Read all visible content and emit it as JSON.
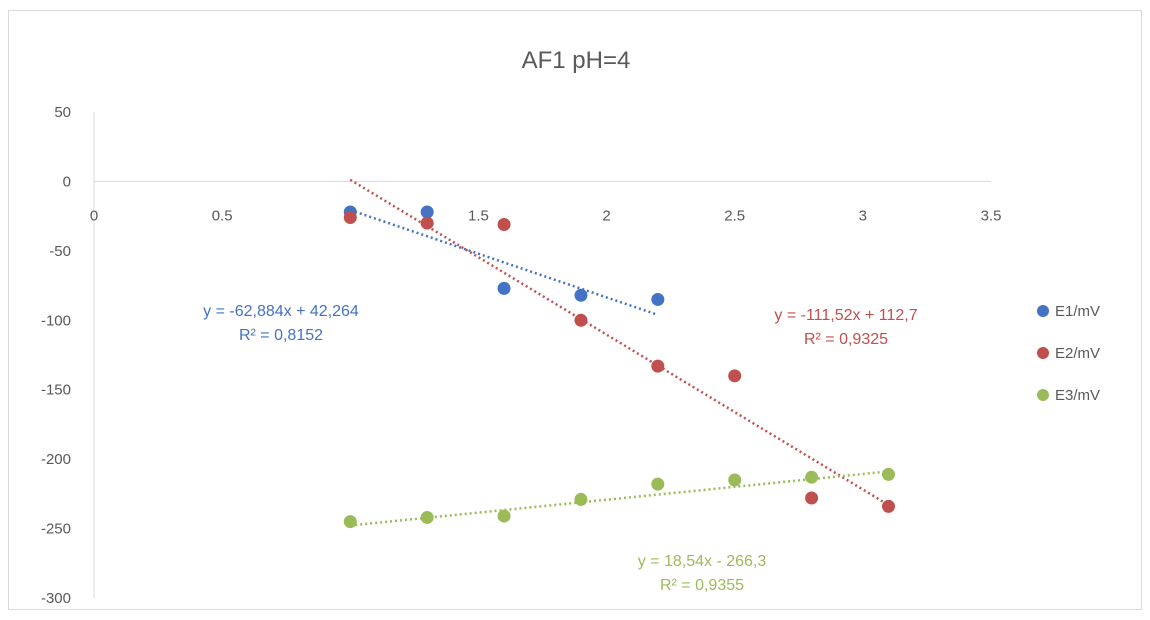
{
  "chart_data": {
    "type": "scatter",
    "title": "AF1 pH=4",
    "xlabel": "",
    "ylabel": "",
    "xlim": [
      0,
      3.5
    ],
    "ylim": [
      -300,
      50
    ],
    "x_ticks": [
      0,
      0.5,
      1,
      1.5,
      2,
      2.5,
      3,
      3.5
    ],
    "y_ticks": [
      50,
      0,
      -50,
      -100,
      -150,
      -200,
      -250,
      -300
    ],
    "x_tick_labels": [
      "0",
      "0.5",
      "1",
      "1.5",
      "2",
      "2.5",
      "3",
      "3.5"
    ],
    "y_tick_labels": [
      "50",
      "0",
      "-50",
      "-100",
      "-150",
      "-200",
      "-250",
      "-300"
    ],
    "grid": false,
    "legend_position": "right",
    "series": [
      {
        "name": "E1/mV",
        "color": "#4472c4",
        "points": [
          [
            1.0,
            -22
          ],
          [
            1.3,
            -22
          ],
          [
            1.6,
            -77
          ],
          [
            1.9,
            -82
          ],
          [
            2.2,
            -85
          ]
        ],
        "trendline": {
          "slope": -62.884,
          "intercept": 42.264,
          "x_range": [
            1.0,
            2.2
          ],
          "equation": "y = -62,884x + 42,264",
          "r2": "R² = 0,8152"
        }
      },
      {
        "name": "E2/mV",
        "color": "#c0504d",
        "points": [
          [
            1.0,
            -26
          ],
          [
            1.3,
            -30
          ],
          [
            1.6,
            -31
          ],
          [
            1.9,
            -100
          ],
          [
            2.2,
            -133
          ],
          [
            2.5,
            -140
          ],
          [
            2.8,
            -228
          ],
          [
            3.1,
            -234
          ]
        ],
        "trendline": {
          "slope": -111.52,
          "intercept": 112.7,
          "x_range": [
            1.0,
            3.1
          ],
          "equation": "y = -111,52x + 112,7",
          "r2": "R² = 0,9325"
        }
      },
      {
        "name": "E3/mV",
        "color": "#9bbb59",
        "points": [
          [
            1.0,
            -245
          ],
          [
            1.3,
            -242
          ],
          [
            1.6,
            -241
          ],
          [
            1.9,
            -229
          ],
          [
            2.2,
            -218
          ],
          [
            2.5,
            -215
          ],
          [
            2.8,
            -213
          ],
          [
            3.1,
            -211
          ]
        ],
        "trendline": {
          "slope": 18.54,
          "intercept": -266.3,
          "x_range": [
            1.0,
            3.1
          ],
          "equation": "y = 18,54x - 266,3",
          "r2": "R² = 0,9355"
        }
      }
    ]
  }
}
